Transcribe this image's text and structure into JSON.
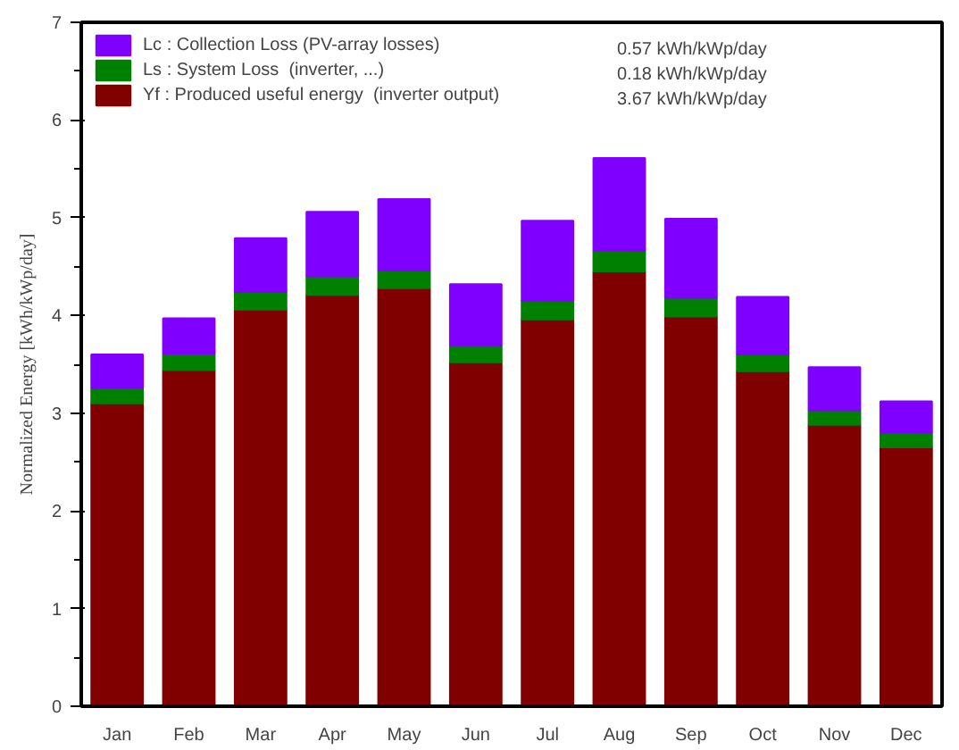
{
  "chart_data": {
    "type": "bar",
    "stacked": true,
    "ylabel": "Normalized Energy [kWh/kWp/day]",
    "categories": [
      "Jan",
      "Feb",
      "Mar",
      "Apr",
      "May",
      "Jun",
      "Jul",
      "Aug",
      "Sep",
      "Oct",
      "Nov",
      "Dec"
    ],
    "series": [
      {
        "name": "Yf : Produced useful energy  (inverter output)",
        "color": "#800000",
        "values": [
          3.1,
          3.44,
          4.06,
          4.21,
          4.28,
          3.52,
          3.96,
          4.45,
          3.99,
          3.43,
          2.88,
          2.65
        ]
      },
      {
        "name": "Ls : System Loss  (inverter, ...)",
        "color": "#008000",
        "values": [
          0.16,
          0.17,
          0.18,
          0.19,
          0.18,
          0.17,
          0.19,
          0.21,
          0.19,
          0.17,
          0.15,
          0.15
        ]
      },
      {
        "name": "Lc : Collection Loss (PV-array losses)",
        "color": "#8000ff",
        "values": [
          0.34,
          0.36,
          0.55,
          0.66,
          0.73,
          0.63,
          0.82,
          0.95,
          0.81,
          0.59,
          0.44,
          0.32
        ]
      }
    ],
    "annotations": [
      "0.57 kWh/kWp/day",
      "0.18 kWh/kWp/day",
      "3.67 kWh/kWp/day"
    ],
    "ylim": [
      0,
      7
    ],
    "yticks": [
      0,
      1,
      2,
      3,
      4,
      5,
      6,
      7
    ],
    "grid": false,
    "legend": "top left"
  }
}
